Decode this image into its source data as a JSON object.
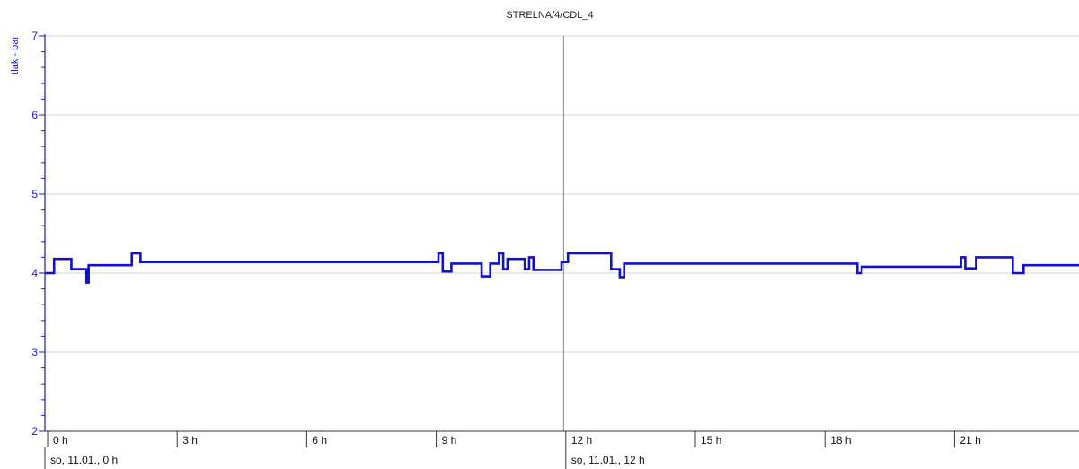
{
  "chart_data": {
    "type": "line",
    "title": "STRELNA/4/CDL_4",
    "ylabel": "tlak - bar",
    "xlabel": "",
    "ylim": [
      2,
      7
    ],
    "yticks": [
      2,
      3,
      4,
      5,
      6,
      7
    ],
    "xlim": [
      0,
      24
    ],
    "xticks": [
      {
        "value": 0,
        "label": "0 h"
      },
      {
        "value": 3,
        "label": "3 h"
      },
      {
        "value": 6,
        "label": "6 h"
      },
      {
        "value": 9,
        "label": "9 h"
      },
      {
        "value": 12,
        "label": "12 h"
      },
      {
        "value": 15,
        "label": "15 h"
      },
      {
        "value": 18,
        "label": "18 h"
      },
      {
        "value": 21,
        "label": "21 h"
      }
    ],
    "date_labels": [
      {
        "value": 0,
        "label": "so, 11.01., 0 h"
      },
      {
        "value": 12,
        "label": "so, 11.01., 12 h"
      }
    ],
    "cursor_x": 11.95,
    "grid": true,
    "line_color": "#1010d0",
    "axis_color": "#1a1acc",
    "series": [
      {
        "x": [
          -0.05,
          0.15,
          0.15,
          0.55,
          0.55,
          0.9,
          0.9,
          0.95,
          0.95,
          1.95,
          1.95,
          2.15,
          2.15,
          9.05,
          9.05,
          9.15,
          9.15,
          9.35,
          9.35,
          10.05,
          10.05,
          10.25,
          10.25,
          10.45,
          10.45,
          10.55,
          10.55,
          10.65,
          10.65,
          11.05,
          11.05,
          11.15,
          11.15,
          11.25,
          11.25,
          11.9,
          11.9,
          12.05,
          12.05,
          13.05,
          13.05,
          13.15,
          13.15,
          13.25,
          13.25,
          13.35,
          13.35,
          18.75,
          18.75,
          18.85,
          18.85,
          21.15,
          21.15,
          21.25,
          21.25,
          21.5,
          21.5,
          22.35,
          22.35,
          22.6,
          22.6,
          24.1
        ],
        "y": [
          4.0,
          4.0,
          4.18,
          4.18,
          4.05,
          4.05,
          3.88,
          3.88,
          4.1,
          4.1,
          4.25,
          4.25,
          4.14,
          4.14,
          4.25,
          4.25,
          4.02,
          4.02,
          4.12,
          4.12,
          3.96,
          3.96,
          4.12,
          4.12,
          4.25,
          4.25,
          4.05,
          4.05,
          4.18,
          4.18,
          4.05,
          4.05,
          4.2,
          4.2,
          4.04,
          4.04,
          4.14,
          4.14,
          4.25,
          4.25,
          4.05,
          4.05,
          4.05,
          4.05,
          3.95,
          3.95,
          4.12,
          4.12,
          4.0,
          4.0,
          4.08,
          4.08,
          4.2,
          4.2,
          4.06,
          4.06,
          4.2,
          4.2,
          4.0,
          4.0,
          4.1,
          4.1
        ]
      }
    ]
  }
}
